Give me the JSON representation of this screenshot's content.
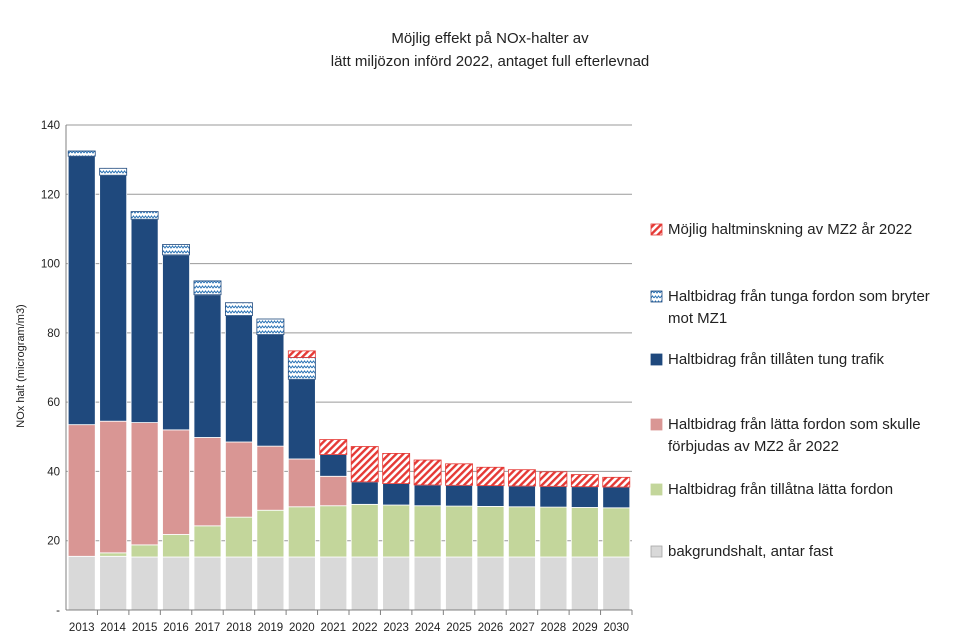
{
  "chart_data": {
    "type": "bar",
    "stacked": true,
    "title_lines": [
      "Möjlig effekt på NOx-halter av",
      "lätt miljözon införd 2022, antaget full efterlevnad"
    ],
    "ylabel": "NOx halt (microgram/m3)",
    "xlabel": "",
    "ylim": [
      0,
      140
    ],
    "yticks": [
      {
        "value": 0,
        "label": "-"
      },
      {
        "value": 20,
        "label": "20"
      },
      {
        "value": 40,
        "label": "40"
      },
      {
        "value": 60,
        "label": "60"
      },
      {
        "value": 80,
        "label": "80"
      },
      {
        "value": 100,
        "label": "100"
      },
      {
        "value": 120,
        "label": "120"
      },
      {
        "value": 140,
        "label": "140"
      }
    ],
    "grid": true,
    "legend_position": "right",
    "categories": [
      "2013",
      "2014",
      "2015",
      "2016",
      "2017",
      "2018",
      "2019",
      "2020",
      "2021",
      "2022",
      "2023",
      "2024",
      "2025",
      "2026",
      "2027",
      "2028",
      "2029",
      "2030"
    ],
    "series": [
      {
        "name": "bakgrundshalt, antar fast",
        "color": "#d9d9d9",
        "pattern": "solid",
        "values": [
          15.5,
          15.5,
          15.3,
          15.3,
          15.3,
          15.3,
          15.3,
          15.3,
          15.3,
          15.3,
          15.3,
          15.3,
          15.3,
          15.3,
          15.3,
          15.3,
          15.3,
          15.3
        ]
      },
      {
        "name": "Haltbidrag från tillåtna lätta fordon",
        "color": "#c3d69b",
        "pattern": "solid",
        "values": [
          0,
          1,
          3.5,
          6.5,
          9,
          11.5,
          13.5,
          14.5,
          14.8,
          15.2,
          15.0,
          14.8,
          14.7,
          14.6,
          14.5,
          14.4,
          14.3,
          14.2
        ]
      },
      {
        "name": "Haltbidrag från lätta fordon som skulle förbjudas av MZ2 år 2022",
        "color": "#d99694",
        "pattern": "solid",
        "values": [
          38,
          38,
          35.3,
          30.2,
          25.5,
          21.7,
          18.5,
          13.8,
          8.5,
          0,
          0,
          0,
          0,
          0,
          0,
          0,
          0,
          0
        ]
      },
      {
        "name": "Haltbidrag från tillåten tung trafik",
        "color": "#1f497d",
        "pattern": "solid",
        "values": [
          77.5,
          71,
          58.7,
          50.5,
          41.2,
          36.5,
          32.2,
          23,
          6.3,
          6.5,
          6.2,
          6,
          6,
          6,
          6,
          6,
          6,
          6
        ]
      },
      {
        "name": "Haltbidrag från tunga fordon som bryter mot MZ1",
        "color": "#1f497d",
        "pattern": "waves",
        "values": [
          1.5,
          2,
          2.2,
          3,
          4,
          3.7,
          4.5,
          6.3,
          0,
          0,
          0,
          0,
          0,
          0,
          0,
          0,
          0,
          0
        ]
      },
      {
        "name": "Möjlig haltminskning av MZ2 år 2022",
        "color": "#e53935",
        "pattern": "hatch",
        "values": [
          0,
          0,
          0,
          0,
          0,
          0,
          0,
          1.9,
          4.3,
          10.2,
          8.7,
          7.2,
          6.2,
          5.3,
          4.7,
          4.2,
          3.5,
          2.8
        ]
      }
    ],
    "legend_order": [
      5,
      4,
      3,
      2,
      1,
      0
    ]
  }
}
